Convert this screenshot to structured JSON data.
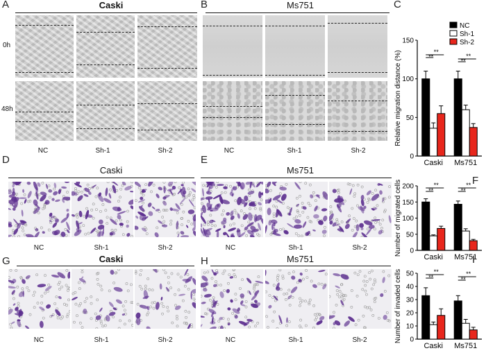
{
  "panel_letters": [
    "A",
    "B",
    "C",
    "D",
    "E",
    "F",
    "G",
    "H",
    "I"
  ],
  "titles": {
    "a": "Caski",
    "b": "Ms751",
    "d": "Caski",
    "e": "Ms751",
    "g": "Caski",
    "h": "Ms751"
  },
  "row_labels": [
    "0h",
    "48h"
  ],
  "column_labels": [
    "NC",
    "Sh-1",
    "Sh-2"
  ],
  "colors": {
    "NC": "#000000",
    "Sh-1": "#ffffff",
    "Sh-2": "#e8261c",
    "stain": "#5b2d8e"
  },
  "chart_data": [
    {
      "type": "bar",
      "panel": "C",
      "categories": [
        "Caski",
        "Ms751"
      ],
      "series": [
        {
          "name": "NC",
          "values": [
            100,
            100
          ],
          "errors": [
            10,
            10
          ]
        },
        {
          "name": "Sh-1",
          "values": [
            36,
            60
          ],
          "errors": [
            7,
            6
          ]
        },
        {
          "name": "Sh-2",
          "values": [
            55,
            37
          ],
          "errors": [
            10,
            5
          ]
        }
      ],
      "ylabel": "Relative migration distance (%)",
      "ylim": [
        0,
        150
      ],
      "yticks": [
        "0",
        "50",
        "100",
        "150"
      ],
      "annotations": [
        "**",
        "**",
        "**",
        "**"
      ]
    },
    {
      "type": "bar",
      "panel": "F",
      "categories": [
        "Caski",
        "Ms751"
      ],
      "series": [
        {
          "name": "NC",
          "values": [
            150,
            143
          ],
          "errors": [
            10,
            10
          ]
        },
        {
          "name": "Sh-1",
          "values": [
            45,
            60
          ],
          "errors": [
            3,
            7
          ]
        },
        {
          "name": "Sh-2",
          "values": [
            68,
            30
          ],
          "errors": [
            7,
            4
          ]
        }
      ],
      "ylabel": "Number of migrated cells",
      "ylim": [
        0,
        200
      ],
      "yticks": [
        "0",
        "50",
        "100",
        "150",
        "200"
      ],
      "annotations": [
        "**",
        "**",
        "**",
        "**"
      ]
    },
    {
      "type": "bar",
      "panel": "I",
      "categories": [
        "Caski",
        "Ms751"
      ],
      "series": [
        {
          "name": "NC",
          "values": [
            33,
            29
          ],
          "errors": [
            6,
            4
          ]
        },
        {
          "name": "Sh-1",
          "values": [
            11,
            12
          ],
          "errors": [
            2,
            3
          ]
        },
        {
          "name": "Sh-2",
          "values": [
            18,
            7
          ],
          "errors": [
            5,
            2
          ]
        }
      ],
      "ylabel": "Number of invaded cells",
      "ylim": [
        0,
        50
      ],
      "yticks": [
        "0",
        "10",
        "20",
        "30",
        "40",
        "50"
      ],
      "annotations": [
        "**",
        "**",
        "**",
        "**"
      ]
    }
  ]
}
